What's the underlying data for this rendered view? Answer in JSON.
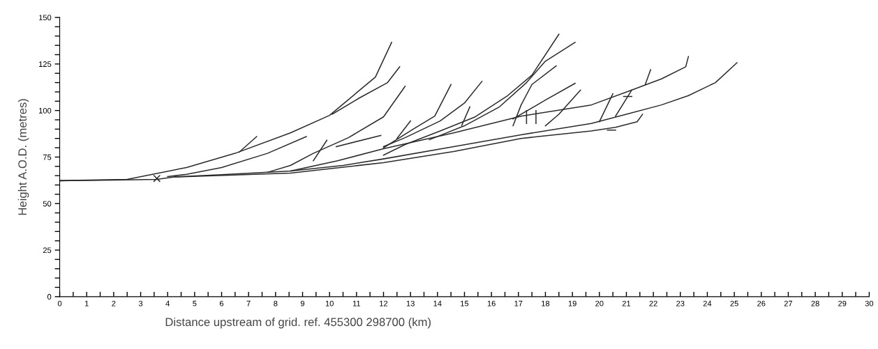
{
  "chart_data": {
    "type": "line",
    "xlabel": "Distance upstream of grid. ref. 455300 298700 (km)",
    "ylabel": "Height A.O.D. (metres)",
    "color": "#2a2a2a",
    "xlim": [
      0,
      30
    ],
    "ylim": [
      0,
      150
    ],
    "xticks": [
      0,
      {
        "value": 0.5,
        "label": null
      },
      1,
      {
        "value": 1.5,
        "label": null
      },
      2,
      {
        "value": 2.5,
        "label": null
      },
      3,
      {
        "value": 3.5,
        "label": null
      },
      4,
      {
        "value": 4.5,
        "label": null
      },
      5,
      {
        "value": 5.5,
        "label": null
      },
      6,
      {
        "value": 6.5,
        "label": null
      },
      7,
      {
        "value": 7.5,
        "label": null
      },
      8,
      {
        "value": 8.5,
        "label": null
      },
      9,
      {
        "value": 9.5,
        "label": null
      },
      10,
      {
        "value": 10.5,
        "label": null
      },
      11,
      {
        "value": 11.5,
        "label": null
      },
      12,
      {
        "value": 12.5,
        "label": null
      },
      13,
      {
        "value": 13.5,
        "label": null
      },
      14,
      {
        "value": 14.5,
        "label": null
      },
      15,
      {
        "value": 15.5,
        "label": null
      },
      16,
      {
        "value": 16.5,
        "label": null
      },
      17,
      {
        "value": 17.5,
        "label": null
      },
      18,
      {
        "value": 18.5,
        "label": null
      },
      19,
      {
        "value": 19.5,
        "label": null
      },
      20,
      {
        "value": 20.5,
        "label": null
      },
      21,
      {
        "value": 21.5,
        "label": null
      },
      22,
      {
        "value": 22.5,
        "label": null
      },
      23,
      {
        "value": 23.5,
        "label": null
      },
      24,
      {
        "value": 24.5,
        "label": null
      },
      25,
      {
        "value": 25.5,
        "label": null
      },
      26,
      {
        "value": 26.5,
        "label": null
      },
      27,
      {
        "value": 27.5,
        "label": null
      },
      28,
      {
        "value": 28.5,
        "label": null
      },
      29,
      {
        "value": 29.5,
        "label": null
      },
      30
    ],
    "yticks": [
      0,
      {
        "value": 5,
        "label": null
      },
      {
        "value": 10,
        "label": null
      },
      {
        "value": 15,
        "label": null
      },
      {
        "value": 20,
        "label": null
      },
      25,
      {
        "value": 30,
        "label": null
      },
      {
        "value": 35,
        "label": null
      },
      {
        "value": 40,
        "label": null
      },
      {
        "value": 45,
        "label": null
      },
      50,
      {
        "value": 55,
        "label": null
      },
      {
        "value": 60,
        "label": null
      },
      {
        "value": 65,
        "label": null
      },
      {
        "value": 70,
        "label": null
      },
      75,
      {
        "value": 80,
        "label": null
      },
      {
        "value": 85,
        "label": null
      },
      {
        "value": 90,
        "label": null
      },
      {
        "value": 95,
        "label": null
      },
      100,
      {
        "value": 105,
        "label": null
      },
      {
        "value": 110,
        "label": null
      },
      {
        "value": 115,
        "label": null
      },
      {
        "value": 120,
        "label": null
      },
      125,
      {
        "value": 130,
        "label": null
      },
      {
        "value": 135,
        "label": null
      },
      {
        "value": 140,
        "label": null
      },
      {
        "value": 145,
        "label": null
      },
      150
    ],
    "series": [
      {
        "x": [
          0,
          2,
          3.6,
          4.25,
          6,
          8.55,
          10.5,
          12.0,
          14.6,
          17.1,
          19.7,
          21.0,
          22.3,
          23.3,
          24.3,
          25.1
        ],
        "values": [
          62.3,
          62.6,
          63,
          64.3,
          65.5,
          67.5,
          70.5,
          74,
          80.6,
          87,
          93,
          98,
          103,
          108,
          115,
          125.7
        ]
      },
      {
        "x": [
          4.25,
          8.55,
          12.0,
          14.6,
          17.1,
          19.7,
          20.6,
          21.4,
          21.6
        ],
        "values": [
          64.3,
          66.4,
          72,
          78,
          85,
          89,
          91,
          94,
          98
        ]
      },
      {
        "x": [
          8.55,
          10.3,
          12.0,
          14.6,
          17.1,
          19.7,
          21.2,
          22.3,
          23.2,
          23.3
        ],
        "values": [
          67.5,
          73,
          79.5,
          88,
          97,
          103,
          111,
          117,
          123.5,
          129
        ]
      },
      {
        "x": [
          0,
          2.5,
          4.7,
          6.5,
          8.55,
          10.0,
          11.7,
          12.3
        ],
        "values": [
          62.3,
          63,
          69.4,
          77,
          88,
          97.4,
          118,
          136.6
        ]
      },
      {
        "x": [
          10.1,
          11.1,
          12.15,
          12.6
        ],
        "values": [
          98,
          106.7,
          115,
          123.5
        ]
      },
      {
        "x": [
          6.65,
          7.3
        ],
        "values": [
          77.6,
          86
        ]
      },
      {
        "x": [
          4.0,
          4.7,
          6.0,
          7.7,
          9.14
        ],
        "values": [
          64.5,
          65.7,
          69.4,
          77,
          86
        ]
      },
      {
        "x": [
          7.7,
          8.55,
          9.4,
          10.7,
          12.0,
          12.8
        ],
        "values": [
          66.8,
          70.5,
          77,
          85.4,
          96.6,
          113
        ]
      },
      {
        "x": [
          9.4,
          9.9
        ],
        "values": [
          73,
          84
        ]
      },
      {
        "x": [
          10.25,
          11.9
        ],
        "values": [
          80.6,
          86.6
        ]
      },
      {
        "x": [
          12.0,
          13.1,
          13.9,
          14.5
        ],
        "values": [
          80,
          90,
          97,
          114
        ]
      },
      {
        "x": [
          12.0,
          12.8,
          14.1,
          15.0,
          15.65
        ],
        "values": [
          80.6,
          85.4,
          94.4,
          104,
          115.7
        ]
      },
      {
        "x": [
          12.0,
          12.8,
          14.1,
          15.4,
          16.6,
          17.5,
          18.5
        ],
        "values": [
          76,
          81.7,
          89,
          96.6,
          108,
          119,
          141
        ]
      },
      {
        "x": [
          13.7,
          15.0,
          16.3,
          17.3,
          18.0,
          19.1
        ],
        "values": [
          84.3,
          91.8,
          102,
          115,
          126.5,
          136.6
        ]
      },
      {
        "x": [
          16.8,
          17.1,
          17.5,
          18.4
        ],
        "values": [
          91.8,
          103,
          114,
          124
        ]
      },
      {
        "x": [
          16.8,
          18.0,
          19.1
        ],
        "values": [
          95.5,
          105.6,
          114.6
        ]
      },
      {
        "x": [
          18.0,
          18.5,
          19.3
        ],
        "values": [
          91.8,
          98,
          111
        ]
      },
      {
        "x": [
          21.7,
          21.9
        ],
        "values": [
          114,
          122
        ]
      },
      {
        "x": [
          20.0,
          20.5
        ],
        "values": [
          94,
          109
        ]
      },
      {
        "x": [
          20.6,
          21.2
        ],
        "values": [
          97,
          111
        ]
      },
      {
        "x": [
          14.9,
          15.2
        ],
        "values": [
          92,
          102
        ]
      },
      {
        "x": [
          12.5,
          13.0
        ],
        "values": [
          85,
          94.4
        ]
      },
      {
        "x": [
          17.3,
          17.3
        ],
        "values": [
          93,
          100
        ]
      },
      {
        "x": [
          17.65,
          17.65
        ],
        "values": [
          93,
          100
        ]
      },
      {
        "x": [
          20.9,
          21.2
        ],
        "values": [
          107.5,
          107.5
        ]
      },
      {
        "x": [
          20.3,
          20.6
        ],
        "values": [
          89.5,
          89.5
        ]
      },
      {
        "type": "scatter",
        "marker": "cross",
        "x": [
          3.6
        ],
        "values": [
          63.5
        ]
      }
    ]
  }
}
